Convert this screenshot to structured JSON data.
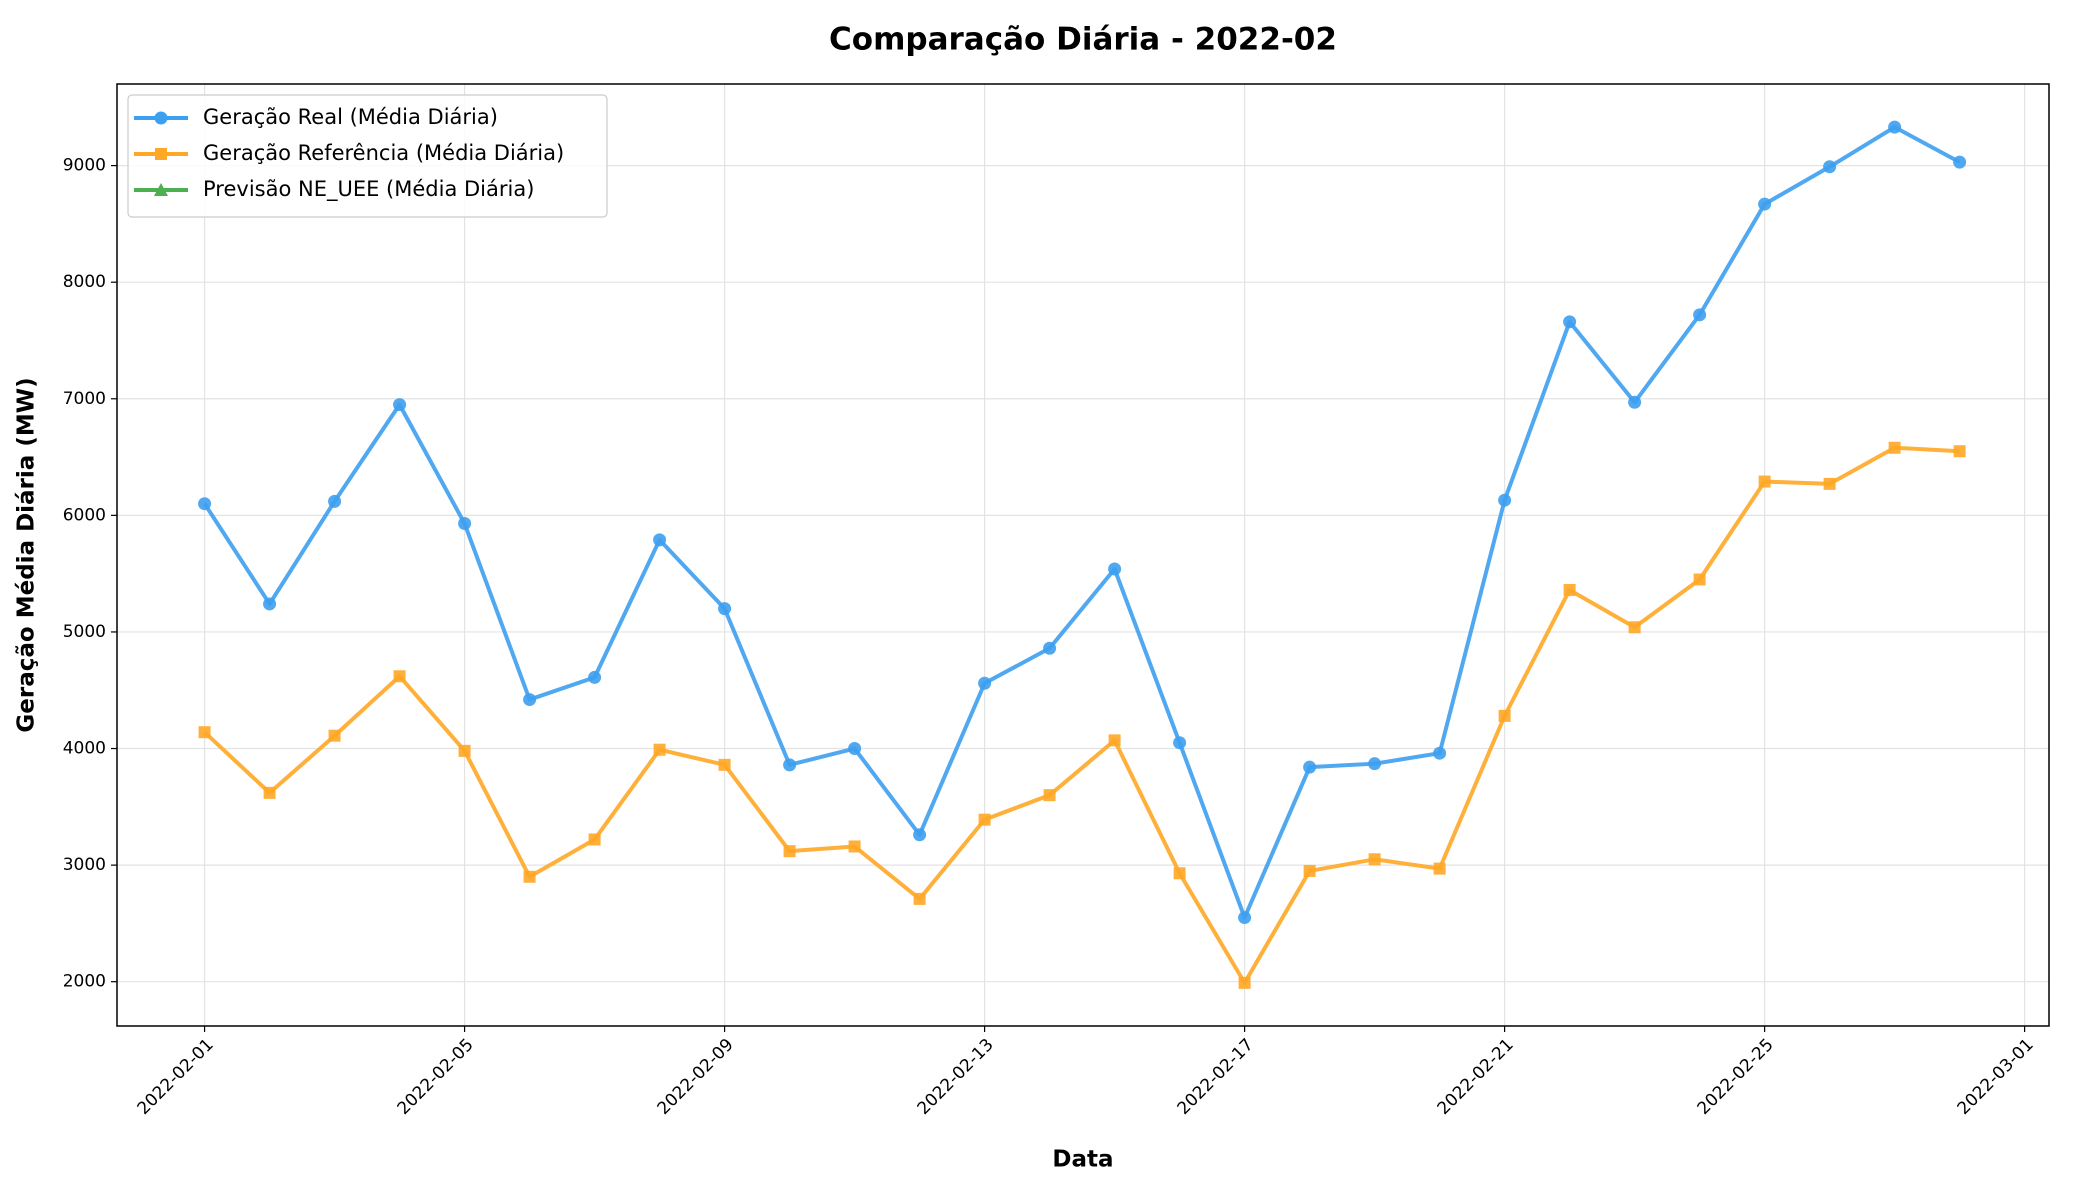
{
  "chart_data": {
    "type": "line",
    "title": "Comparação Diária - 2022-02",
    "xlabel": "Data",
    "ylabel": "Geração Média Diária (MW)",
    "x": [
      "2022-02-01",
      "2022-02-02",
      "2022-02-03",
      "2022-02-04",
      "2022-02-05",
      "2022-02-06",
      "2022-02-07",
      "2022-02-08",
      "2022-02-09",
      "2022-02-10",
      "2022-02-11",
      "2022-02-12",
      "2022-02-13",
      "2022-02-14",
      "2022-02-15",
      "2022-02-16",
      "2022-02-17",
      "2022-02-18",
      "2022-02-19",
      "2022-02-20",
      "2022-02-21",
      "2022-02-22",
      "2022-02-23",
      "2022-02-24",
      "2022-02-25",
      "2022-02-26",
      "2022-02-27",
      "2022-02-28"
    ],
    "series": [
      {
        "name": "Geração Real (Média Diária)",
        "color": "#3d9ff0",
        "marker": "circle",
        "values": [
          6100,
          5240,
          6120,
          6950,
          5930,
          4420,
          4610,
          5790,
          5200,
          3860,
          4000,
          3260,
          4560,
          4860,
          5540,
          4050,
          2550,
          3840,
          3870,
          3960,
          6130,
          7660,
          6970,
          7720,
          8670,
          8990,
          9330,
          9030
        ]
      },
      {
        "name": "Geração Referência (Média Diária)",
        "color": "#ffa726",
        "marker": "square",
        "values": [
          4140,
          3620,
          4110,
          4620,
          3980,
          2900,
          3220,
          3990,
          3860,
          3120,
          3160,
          2710,
          3390,
          3600,
          4070,
          2930,
          1990,
          2950,
          3050,
          2970,
          4280,
          5360,
          5040,
          5450,
          6290,
          6270,
          6580,
          6550
        ]
      },
      {
        "name": "Previsão NE_UEE (Média Diária)",
        "color": "#4caf50",
        "marker": "triangle",
        "values": [
          null,
          null,
          null,
          null,
          null,
          null,
          null,
          null,
          null,
          null,
          null,
          null,
          null,
          null,
          null,
          null,
          null,
          null,
          null,
          null,
          null,
          null,
          null,
          null,
          null,
          null,
          null,
          null
        ]
      }
    ],
    "xlim": [
      "2022-01-30T15:40:00Z",
      "2022-03-01T09:00:00Z"
    ],
    "xticks": [
      "2022-02-01",
      "2022-02-05",
      "2022-02-09",
      "2022-02-13",
      "2022-02-17",
      "2022-02-21",
      "2022-02-25",
      "2022-03-01"
    ],
    "ylim": [
      1620,
      9700
    ],
    "yticks": [
      2000,
      3000,
      4000,
      5000,
      6000,
      7000,
      8000,
      9000
    ],
    "grid": true,
    "legend": "upper left"
  }
}
